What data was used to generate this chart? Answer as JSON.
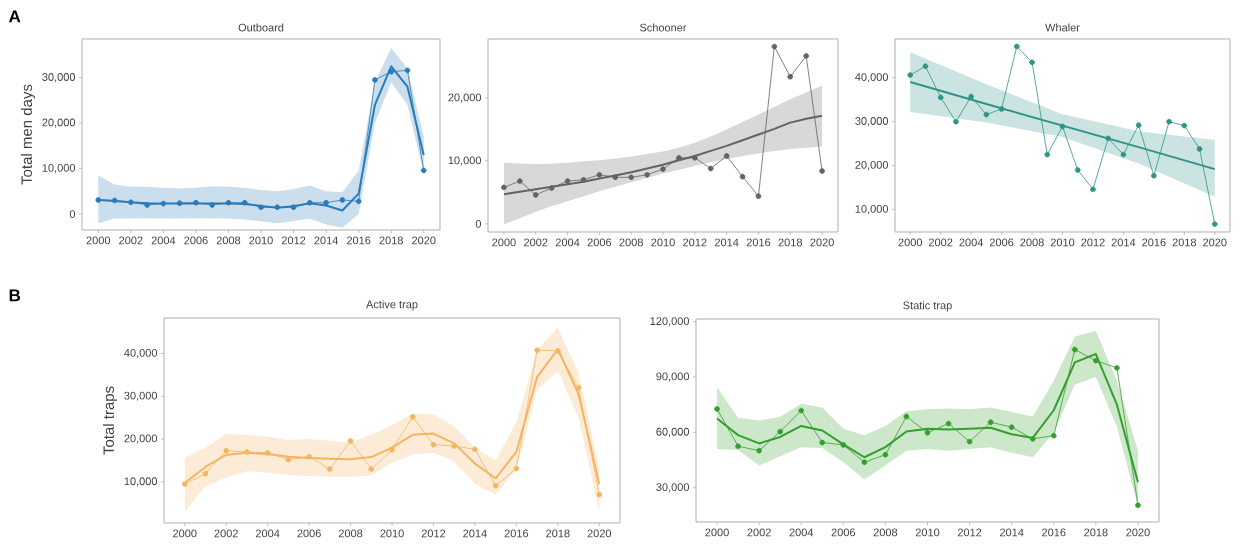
{
  "chart_data": [
    {
      "type": "line",
      "title": "Outboard",
      "ylabel": "Total men days",
      "annotations": [
        "A"
      ],
      "x": [
        2000,
        2001,
        2002,
        2003,
        2004,
        2005,
        2006,
        2007,
        2008,
        2009,
        2010,
        2011,
        2012,
        2013,
        2014,
        2015,
        2016,
        2017,
        2018,
        2019,
        2020
      ],
      "xlim": [
        1999,
        2021
      ],
      "xticks": [
        2000,
        2002,
        2004,
        2006,
        2008,
        2010,
        2012,
        2014,
        2016,
        2018,
        2020
      ],
      "ylim": [
        -3500,
        38500
      ],
      "yticks": [
        0,
        {
          "value": 10000,
          "label": "10,000"
        },
        {
          "value": 20000,
          "label": "20,000"
        },
        {
          "value": 30000,
          "label": "30,000"
        }
      ],
      "series": [
        {
          "color": "#2b7bba",
          "marker": "none",
          "values": [
            3100,
            2900,
            2600,
            2400,
            2300,
            2300,
            2300,
            2300,
            2300,
            2200,
            1800,
            1400,
            1700,
            2400,
            1900,
            800,
            4500,
            24000,
            32500,
            28000,
            13000
          ],
          "lower": [
            -2000,
            -1000,
            -1000,
            -900,
            -1000,
            -1000,
            -900,
            -900,
            -1000,
            -1200,
            -1600,
            -2000,
            -1500,
            -1000,
            -2300,
            -3000,
            0,
            20000,
            29000,
            24000,
            9000
          ],
          "upper": [
            8500,
            6500,
            6000,
            6000,
            5800,
            5600,
            5800,
            6100,
            6000,
            5800,
            5300,
            5000,
            5500,
            6300,
            5000,
            4800,
            9500,
            29000,
            36500,
            32000,
            17000
          ]
        },
        {
          "color": "#2b7bba",
          "marker": "circle",
          "values": [
            3100,
            3000,
            2600,
            2000,
            2300,
            2400,
            2500,
            2000,
            2500,
            2500,
            1500,
            1500,
            1500,
            2500,
            2500,
            3100,
            2800,
            29500,
            31300,
            31600,
            9600
          ]
        }
      ]
    },
    {
      "type": "line",
      "title": "Schooner",
      "x": [
        2000,
        2001,
        2002,
        2003,
        2004,
        2005,
        2006,
        2007,
        2008,
        2009,
        2010,
        2011,
        2012,
        2013,
        2014,
        2015,
        2016,
        2017,
        2018,
        2019,
        2020
      ],
      "xlim": [
        1999,
        2021
      ],
      "xticks": [
        2000,
        2002,
        2004,
        2006,
        2008,
        2010,
        2012,
        2014,
        2016,
        2018,
        2020
      ],
      "ylim": [
        -1300,
        29400
      ],
      "yticks": [
        0,
        {
          "value": 10000,
          "label": "10,000"
        },
        {
          "value": 20000,
          "label": "20,000"
        }
      ],
      "series": [
        {
          "color": "#636363",
          "marker": "none",
          "values": [
            4700,
            5100,
            5500,
            5900,
            6300,
            6700,
            7200,
            7700,
            8200,
            8800,
            9400,
            10100,
            10800,
            11600,
            12400,
            13300,
            14200,
            15100,
            16100,
            16700,
            17200
          ],
          "lower": [
            -100,
            900,
            1900,
            2800,
            3600,
            4400,
            5200,
            5900,
            6600,
            7300,
            8000,
            8600,
            9200,
            9800,
            10300,
            10800,
            11200,
            11600,
            11900,
            12100,
            12300
          ],
          "upper": [
            9700,
            9600,
            9500,
            9550,
            9700,
            9950,
            10100,
            10400,
            10700,
            11100,
            11500,
            12100,
            12900,
            13900,
            15000,
            16200,
            17400,
            18600,
            19800,
            20900,
            22000
          ]
        },
        {
          "color": "#636363",
          "marker": "circle",
          "values": [
            5800,
            6800,
            4600,
            5700,
            6800,
            7000,
            7800,
            7400,
            7400,
            7800,
            8700,
            10500,
            10500,
            8800,
            10800,
            7500,
            4400,
            28200,
            23400,
            26700,
            8400
          ]
        }
      ]
    },
    {
      "type": "line",
      "title": "Whaler",
      "x": [
        2000,
        2001,
        2002,
        2003,
        2004,
        2005,
        2006,
        2007,
        2008,
        2009,
        2010,
        2011,
        2012,
        2013,
        2014,
        2015,
        2016,
        2017,
        2018,
        2019,
        2020
      ],
      "xlim": [
        1999,
        2021
      ],
      "xticks": [
        2000,
        2002,
        2004,
        2006,
        2008,
        2010,
        2012,
        2014,
        2016,
        2018,
        2020
      ],
      "ylim": [
        4900,
        48800
      ],
      "yticks": [
        {
          "value": 10000,
          "label": "10,000"
        },
        {
          "value": 20000,
          "label": "20,000"
        },
        {
          "value": 30000,
          "label": "30,000"
        },
        {
          "value": 40000,
          "label": "40,000"
        }
      ],
      "series": [
        {
          "color": "#2f9488",
          "marker": "none",
          "x": [
            2000,
            2005,
            2010,
            2015,
            2020
          ],
          "values": [
            39000,
            34000,
            29100,
            24200,
            19200
          ],
          "lower": [
            32200,
            29800,
            26500,
            20500,
            12900
          ],
          "upper": [
            45800,
            38500,
            31700,
            27800,
            25800
          ]
        },
        {
          "color": "#2f9488",
          "marker": "circle",
          "values": [
            40600,
            42600,
            35500,
            30000,
            35700,
            31600,
            32900,
            47100,
            43500,
            22500,
            28900,
            19000,
            14600,
            26200,
            22500,
            29200,
            17700,
            30000,
            29100,
            23800,
            6700
          ]
        }
      ]
    },
    {
      "type": "line",
      "title": "Active trap",
      "ylabel": "Total traps",
      "annotations": [
        "B"
      ],
      "x": [
        2000,
        2001,
        2002,
        2003,
        2004,
        2005,
        2006,
        2007,
        2008,
        2009,
        2010,
        2011,
        2012,
        2013,
        2014,
        2015,
        2016,
        2017,
        2018,
        2019,
        2020
      ],
      "xlim": [
        1999,
        2021
      ],
      "xticks": [
        2000,
        2002,
        2004,
        2006,
        2008,
        2010,
        2012,
        2014,
        2016,
        2018,
        2020
      ],
      "ylim": [
        400,
        48300
      ],
      "yticks": [
        {
          "value": 10000,
          "label": "10,000"
        },
        {
          "value": 20000,
          "label": "20,000"
        },
        {
          "value": 30000,
          "label": "30,000"
        },
        {
          "value": 40000,
          "label": "40,000"
        }
      ],
      "series": [
        {
          "color": "#f5b461",
          "marker": "none",
          "values": [
            9800,
            13500,
            16300,
            16800,
            16500,
            15900,
            15600,
            15400,
            15300,
            15800,
            18000,
            21000,
            21300,
            19000,
            14300,
            10800,
            17000,
            34500,
            41000,
            30500,
            9500
          ],
          "lower": [
            3000,
            9000,
            11000,
            12500,
            12200,
            11600,
            11400,
            11200,
            11200,
            11500,
            14500,
            16400,
            16800,
            14800,
            9500,
            7000,
            13000,
            31500,
            36000,
            25000,
            3000
          ],
          "upper": [
            15600,
            18000,
            21200,
            21000,
            20600,
            19800,
            20000,
            19600,
            19200,
            21000,
            23300,
            26000,
            25800,
            23000,
            18000,
            15000,
            24000,
            41000,
            46000,
            35500,
            13000
          ]
        },
        {
          "color": "#f5b461",
          "marker": "circle",
          "values": [
            9500,
            11900,
            17300,
            17000,
            16800,
            15200,
            15900,
            13000,
            19600,
            13000,
            17500,
            25200,
            18700,
            18400,
            17600,
            9100,
            13100,
            40800,
            40600,
            32000,
            7000
          ]
        }
      ]
    },
    {
      "type": "line",
      "title": "Static trap",
      "x": [
        2000,
        2001,
        2002,
        2003,
        2004,
        2005,
        2006,
        2007,
        2008,
        2009,
        2010,
        2011,
        2012,
        2013,
        2014,
        2015,
        2016,
        2017,
        2018,
        2019,
        2020
      ],
      "xlim": [
        1999,
        2021
      ],
      "xticks": [
        2000,
        2002,
        2004,
        2006,
        2008,
        2010,
        2012,
        2014,
        2016,
        2018,
        2020
      ],
      "ylim": [
        11400,
        121500
      ],
      "yticks": [
        {
          "value": 30000,
          "label": "30,000"
        },
        {
          "value": 60000,
          "label": "60,000"
        },
        {
          "value": 90000,
          "label": "90,000"
        },
        {
          "value": 120000,
          "label": "120,000"
        }
      ],
      "series": [
        {
          "color": "#33a02c",
          "marker": "none",
          "values": [
            67500,
            58500,
            54000,
            57500,
            63500,
            61000,
            53500,
            46500,
            52000,
            60500,
            62000,
            61500,
            62000,
            62500,
            59000,
            57000,
            72000,
            98000,
            102500,
            75000,
            33000
          ],
          "lower": [
            51000,
            50500,
            42000,
            47000,
            52000,
            51500,
            44000,
            34500,
            42000,
            50000,
            51000,
            50000,
            51000,
            52000,
            49000,
            46500,
            60000,
            86000,
            90000,
            63000,
            20000
          ],
          "upper": [
            84500,
            68000,
            66500,
            68500,
            75500,
            73500,
            62000,
            58500,
            63500,
            71500,
            72500,
            73000,
            72500,
            73500,
            71000,
            68500,
            88000,
            112000,
            115000,
            88000,
            50000
          ]
        },
        {
          "color": "#33a02c",
          "marker": "circle",
          "values": [
            72700,
            52500,
            50100,
            60400,
            71800,
            54500,
            53200,
            43800,
            47900,
            68600,
            59800,
            64800,
            55000,
            65500,
            62800,
            56500,
            58200,
            104900,
            98900,
            95000,
            20500
          ]
        }
      ]
    }
  ]
}
